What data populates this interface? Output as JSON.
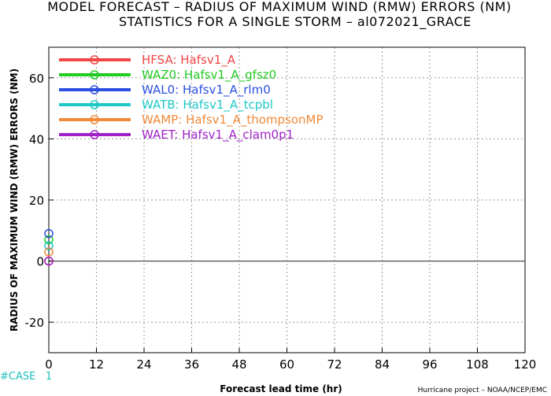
{
  "chart_data": {
    "type": "line",
    "title": "MODEL FORECAST – RADIUS OF MAXIMUM WIND (RMW) ERRORS (NM)",
    "subtitle": "STATISTICS FOR A SINGLE STORM – al072021_GRACE",
    "xlabel": "Forecast lead time (hr)",
    "ylabel": "RADIUS OF MAXIMUM WIND (RMW) ERRORS (NM)",
    "xlim": [
      0,
      120
    ],
    "ylim": [
      -30,
      70
    ],
    "x_ticks": [
      "0",
      "12",
      "24",
      "36",
      "48",
      "60",
      "72",
      "84",
      "96",
      "108",
      "120"
    ],
    "y_ticks": [
      "-20",
      "0",
      "20",
      "40",
      "60"
    ],
    "grid": true,
    "legend_placement": "top-left",
    "series": [
      {
        "name": "HFSA:  Hafsv1_A",
        "color": "#f04646",
        "x": [
          0
        ],
        "y": [
          0
        ]
      },
      {
        "name": "WAZ0:  Hafsv1_A_gfsz0",
        "color": "#22cc22",
        "x": [
          0
        ],
        "y": [
          7
        ]
      },
      {
        "name": "WAL0:  Hafsv1_A_rlm0",
        "color": "#2a4fe0",
        "x": [
          0
        ],
        "y": [
          9
        ]
      },
      {
        "name": "WATB:  Hafsv1_A_tcpbl",
        "color": "#1fc8c8",
        "x": [
          0
        ],
        "y": [
          5
        ]
      },
      {
        "name": "WAMP:  Hafsv1_A_thompsonMP",
        "color": "#f08a3a",
        "x": [
          0
        ],
        "y": [
          3
        ]
      },
      {
        "name": "WAET:  Hafsv1_A_clam0p1",
        "color": "#a020c8",
        "x": [
          0
        ],
        "y": [
          0
        ]
      }
    ],
    "case_label": "#CASE",
    "case_counts": [
      "1"
    ],
    "credit": "Hurricane project – NOAA/NCEP/EMC"
  }
}
